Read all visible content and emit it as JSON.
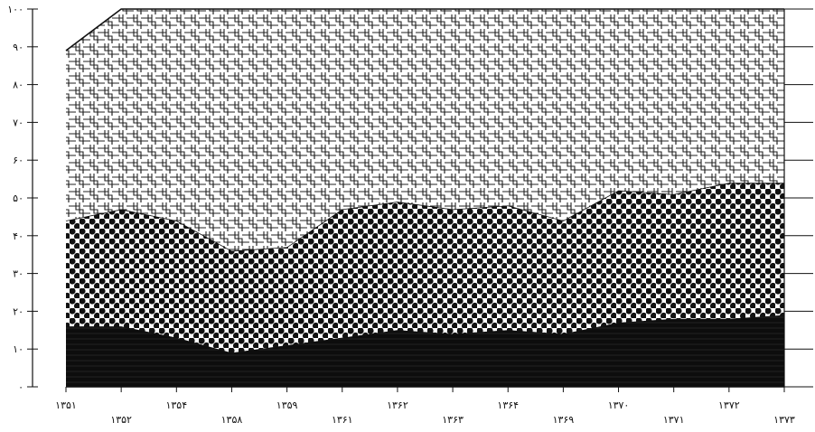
{
  "chart_data": {
    "type": "area",
    "stacked": true,
    "x": [
      "۱۳۵۱",
      "۱۳۵۲",
      "۱۳۵۴",
      "۱۳۵۸",
      "۱۳۵۹",
      "۱۳۶۱",
      "۱۳۶۲",
      "۱۳۶۳",
      "۱۳۶۴",
      "۱۳۶۹",
      "۱۳۷۰",
      "۱۳۷۱",
      "۱۳۷۲",
      "۱۳۷۳"
    ],
    "ylim": [
      0,
      100
    ],
    "yticks": [
      "۰",
      "۱۰",
      "۲۰",
      "۳۰",
      "۴۰",
      "۵۰",
      "۶۰",
      "۷۰",
      "۸۰",
      "۹۰",
      "۱۰۰"
    ],
    "series": [
      {
        "pattern": "solid-black",
        "color": "#111111",
        "values": [
          16,
          16,
          13,
          9,
          11,
          13,
          15,
          14,
          15,
          14,
          17,
          18,
          18,
          19
        ]
      },
      {
        "pattern": "dots",
        "color": "#111111",
        "values": [
          28,
          31,
          31,
          27,
          26,
          34,
          34,
          33,
          33,
          30,
          35,
          33,
          36,
          35
        ]
      },
      {
        "pattern": "lattice-cross",
        "color": "#222222",
        "values": [
          45,
          53,
          56,
          64,
          63,
          53,
          51,
          53,
          52,
          56,
          48,
          49,
          46,
          46
        ]
      }
    ],
    "grid": false,
    "legend": "none"
  }
}
